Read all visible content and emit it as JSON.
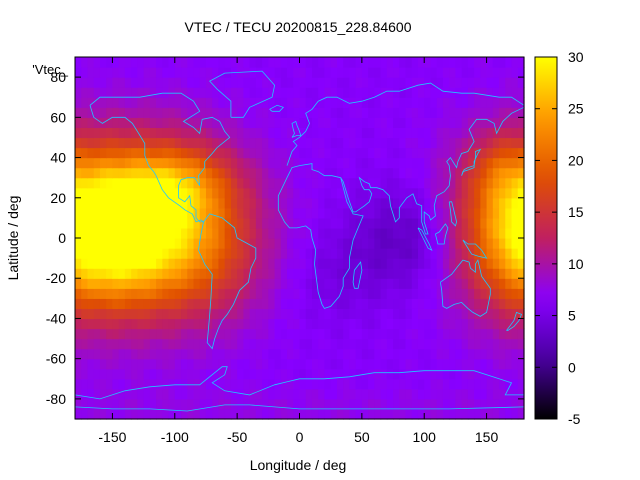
{
  "chart_data": {
    "type": "heatmap",
    "title": "VTEC / TECU 20200815_228.84600",
    "xlabel": "Longitude / deg",
    "ylabel": "Latitude / deg",
    "key_label": "'Vtec_",
    "xlim": [
      -180,
      180
    ],
    "ylim": [
      -90,
      90
    ],
    "x_ticks": [
      -150,
      -100,
      -50,
      0,
      50,
      100,
      150
    ],
    "y_ticks": [
      -80,
      -60,
      -40,
      -20,
      0,
      20,
      40,
      60,
      80
    ],
    "colorbar": {
      "range": [
        -5,
        30
      ],
      "ticks": [
        -5,
        0,
        5,
        10,
        15,
        20,
        25,
        30
      ],
      "palette": [
        "#000000",
        "#4a00a0",
        "#8800ff",
        "#c02060",
        "#e05000",
        "#ff9a00",
        "#ffff00"
      ]
    },
    "background_value": 6.5,
    "features": [
      {
        "lon": -110,
        "lat": 5,
        "sx": 45,
        "sy": 28,
        "amp": 20.5
      },
      {
        "lon": -155,
        "lat": 5,
        "sx": 35,
        "sy": 25,
        "amp": 8
      },
      {
        "lon": -95,
        "lat": 28,
        "sx": 30,
        "sy": 12,
        "amp": 6
      },
      {
        "lon": 175,
        "lat": 5,
        "sx": 38,
        "sy": 28,
        "amp": 15
      },
      {
        "lon": 160,
        "lat": 35,
        "sx": 18,
        "sy": 12,
        "amp": 4
      },
      {
        "lon": 90,
        "lat": 0,
        "sx": 35,
        "sy": 18,
        "amp": -4
      },
      {
        "lon": 30,
        "lat": -20,
        "sx": 25,
        "sy": 15,
        "amp": -1.5
      },
      {
        "lon": -60,
        "lat": -15,
        "sx": 25,
        "sy": 20,
        "amp": 2
      },
      {
        "lon": 0,
        "lat": -85,
        "sx": 360,
        "sy": 8,
        "amp": 1
      }
    ],
    "coastline_color": "#1ec8ff"
  }
}
